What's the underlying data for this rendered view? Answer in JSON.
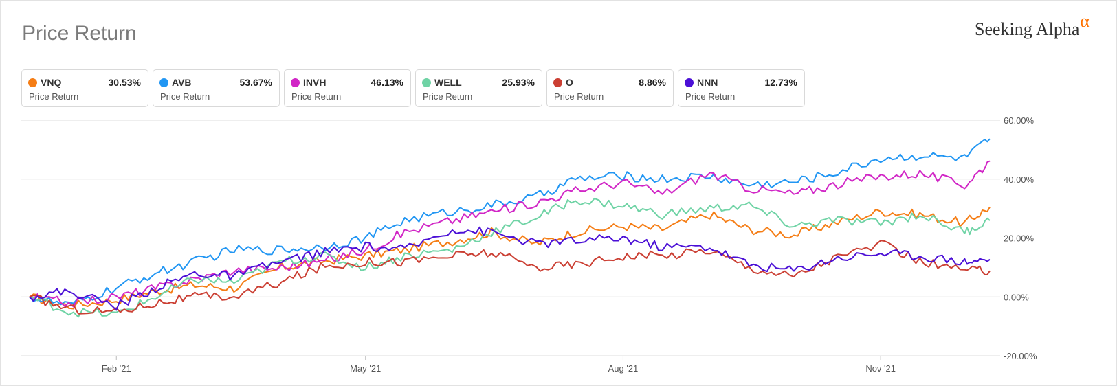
{
  "title": "Price Return",
  "logo": {
    "text": "Seeking Alpha",
    "mark": "α"
  },
  "legend": [
    {
      "ticker": "VNQ",
      "value": "30.53%",
      "sub": "Price Return",
      "color": "#f57d15"
    },
    {
      "ticker": "AVB",
      "value": "53.67%",
      "sub": "Price Return",
      "color": "#2196f3"
    },
    {
      "ticker": "INVH",
      "value": "46.13%",
      "sub": "Price Return",
      "color": "#d126c6"
    },
    {
      "ticker": "WELL",
      "value": "25.93%",
      "sub": "Price Return",
      "color": "#6fd3a5"
    },
    {
      "ticker": "O",
      "value": "8.86%",
      "sub": "Price Return",
      "color": "#cb3f33"
    },
    {
      "ticker": "NNN",
      "value": "12.73%",
      "sub": "Price Return",
      "color": "#4b10d6"
    }
  ],
  "chart_data": {
    "type": "line",
    "title": "Price Return",
    "xlabel": "",
    "ylabel": "",
    "ylim": [
      -20,
      60
    ],
    "yticks": [
      "60.00%",
      "40.00%",
      "20.00%",
      "0.00%",
      "-20.00%"
    ],
    "ytick_values": [
      60,
      40,
      20,
      0,
      -20
    ],
    "xlim": [
      "2021-01-01",
      "2021-12-10"
    ],
    "xticks": [
      {
        "label": "Feb '21",
        "date": "2021-02-01"
      },
      {
        "label": "May '21",
        "date": "2021-05-01"
      },
      {
        "label": "Aug '21",
        "date": "2021-08-01"
      },
      {
        "label": "Nov '21",
        "date": "2021-11-01"
      }
    ],
    "grid": "horizontal",
    "y_axis_position": "right",
    "x": [
      "2021-01-01",
      "2021-01-15",
      "2021-02-01",
      "2021-02-15",
      "2021-03-01",
      "2021-03-15",
      "2021-04-01",
      "2021-04-15",
      "2021-05-01",
      "2021-05-15",
      "2021-06-01",
      "2021-06-15",
      "2021-07-01",
      "2021-07-15",
      "2021-08-01",
      "2021-08-15",
      "2021-09-01",
      "2021-09-15",
      "2021-10-01",
      "2021-10-15",
      "2021-11-01",
      "2021-11-15",
      "2021-12-01",
      "2021-12-10"
    ],
    "series": [
      {
        "name": "VNQ",
        "color": "#f57d15",
        "values": [
          0,
          -3,
          -1,
          2,
          4,
          3,
          10,
          12,
          14,
          16,
          19,
          22,
          18,
          22,
          24,
          23,
          28,
          23,
          21,
          25,
          29,
          28,
          25,
          30.53
        ]
      },
      {
        "name": "AVB",
        "color": "#2196f3",
        "values": [
          0,
          -3,
          3,
          8,
          12,
          16,
          16,
          17,
          20,
          26,
          29,
          31,
          34,
          40,
          41,
          40,
          41,
          38,
          39,
          42,
          47,
          48,
          47,
          53.67
        ]
      },
      {
        "name": "INVH",
        "color": "#d126c6",
        "values": [
          0,
          -2,
          0,
          3,
          6,
          9,
          10,
          12,
          16,
          22,
          26,
          29,
          32,
          36,
          39,
          35,
          42,
          37,
          35,
          38,
          41,
          42,
          38,
          46.13
        ]
      },
      {
        "name": "WELL",
        "color": "#6fd3a5",
        "values": [
          0,
          -5,
          -6,
          0,
          6,
          5,
          12,
          14,
          10,
          14,
          16,
          22,
          27,
          33,
          31,
          28,
          30,
          31,
          24,
          26,
          25,
          28,
          22,
          25.93
        ]
      },
      {
        "name": "O",
        "color": "#cb3f33",
        "values": [
          0,
          -4,
          -5,
          -2,
          0,
          0,
          5,
          10,
          12,
          12,
          14,
          15,
          10,
          11,
          14,
          14,
          16,
          10,
          7,
          13,
          18,
          12,
          9,
          8.86
        ]
      },
      {
        "name": "NNN",
        "color": "#4b10d6",
        "values": [
          0,
          2,
          -3,
          3,
          8,
          7,
          12,
          15,
          17,
          16,
          23,
          22,
          18,
          19,
          20,
          17,
          17,
          11,
          9,
          13,
          15,
          14,
          12,
          12.73
        ]
      }
    ]
  }
}
